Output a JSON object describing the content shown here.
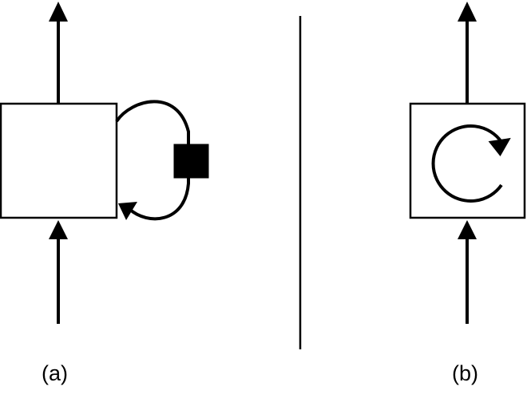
{
  "diagram": {
    "panel_a": {
      "label": "(a)",
      "description_parts": [
        "box",
        "input-arrow",
        "output-arrow",
        "feedback-loop",
        "delay-square"
      ]
    },
    "panel_b": {
      "label": "(b)",
      "icon": "circular-arrow-icon"
    },
    "colors": {
      "stroke": "#000000",
      "fill": "#ffffff",
      "delay_fill": "#000000"
    }
  }
}
